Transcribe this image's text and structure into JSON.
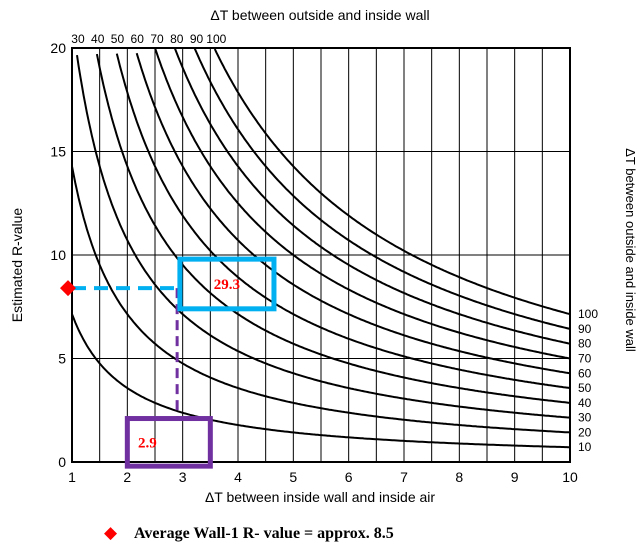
{
  "chart_data": {
    "type": "line",
    "title": "ΔT between outside and inside wall",
    "xlabel": "ΔT between inside wall and inside air",
    "ylabel": "Estimated R-value",
    "right_label": "ΔT between outside and inside wall",
    "xlim": [
      1,
      10
    ],
    "ylim": [
      0,
      20
    ],
    "x_ticks": [
      "1",
      "2",
      "3",
      "4",
      "5",
      "6",
      "7",
      "8",
      "9",
      "10"
    ],
    "y_ticks": [
      "0",
      "5",
      "10",
      "15",
      "20"
    ],
    "top_curve_labels": [
      "30",
      "40",
      "50",
      "60",
      "70",
      "80",
      "90",
      "100"
    ],
    "right_curve_labels": [
      "100",
      "90",
      "80",
      "70",
      "60",
      "50",
      "40",
      "30",
      "20",
      "10"
    ],
    "grid": true,
    "series": [
      {
        "name": "10",
        "k": 10
      },
      {
        "name": "20",
        "k": 20
      },
      {
        "name": "30",
        "k": 30
      },
      {
        "name": "40",
        "k": 40
      },
      {
        "name": "50",
        "k": 50
      },
      {
        "name": "60",
        "k": 60
      },
      {
        "name": "70",
        "k": 70
      },
      {
        "name": "80",
        "k": 80
      },
      {
        "name": "90",
        "k": 90
      },
      {
        "name": "100",
        "k": 100
      }
    ],
    "annotations": {
      "r_value_point": {
        "x": 1,
        "y": 8.4
      },
      "ratio_box": {
        "label": "29.3",
        "x": [
          2.95,
          4.65
        ],
        "y": [
          7.4,
          9.8
        ]
      },
      "x_box": {
        "label": "2.9",
        "x": [
          2.0,
          3.5
        ],
        "y": [
          -0.2,
          2.1
        ]
      },
      "vertical_read_x": 2.9,
      "colors": {
        "blue": "#00B0F0",
        "purple": "#7030A0",
        "marker": "#FF0000",
        "label": "#FF0000"
      }
    },
    "legend": {
      "marker": "◆",
      "text": "Average Wall-1 R- value = approx. 8.5"
    }
  }
}
